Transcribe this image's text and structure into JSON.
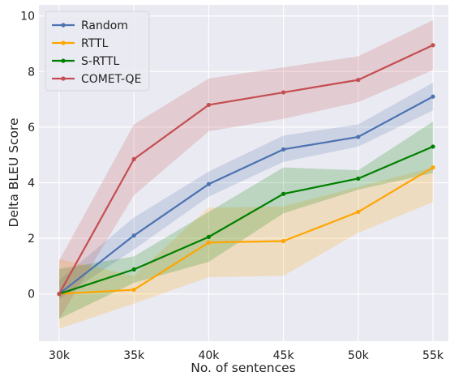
{
  "chart_data": {
    "type": "line",
    "xlabel": "No. of sentences",
    "ylabel": "Delta BLEU Score",
    "categories": [
      "30k",
      "35k",
      "40k",
      "45k",
      "50k",
      "55k"
    ],
    "yticks": [
      0,
      2,
      4,
      6,
      8,
      10
    ],
    "ylim": [
      -1.7,
      10.4
    ],
    "grid": true,
    "legend_position": "top-left",
    "series": [
      {
        "name": "Random",
        "color": "#4c72b0",
        "values": [
          0.0,
          2.1,
          3.95,
          5.2,
          5.65,
          7.1
        ],
        "band_lower": [
          -0.2,
          1.6,
          3.5,
          4.75,
          5.3,
          6.6
        ],
        "band_upper": [
          0.5,
          2.75,
          4.4,
          5.7,
          6.1,
          7.6
        ]
      },
      {
        "name": "RTTL",
        "color": "#ffa500",
        "values": [
          0.0,
          0.15,
          1.85,
          1.9,
          2.95,
          4.55
        ],
        "band_lower": [
          -1.25,
          -0.35,
          0.6,
          0.65,
          2.2,
          3.3
        ],
        "band_upper": [
          1.25,
          0.65,
          3.1,
          3.15,
          3.85,
          4.55
        ]
      },
      {
        "name": "S-RTTL",
        "color": "#008000",
        "values": [
          0.0,
          0.88,
          2.05,
          3.6,
          4.15,
          5.3
        ],
        "band_lower": [
          -0.9,
          0.4,
          1.15,
          2.9,
          3.75,
          4.35
        ],
        "band_upper": [
          0.9,
          1.35,
          2.95,
          4.55,
          4.45,
          6.2
        ]
      },
      {
        "name": "COMET-QE",
        "color": "#c44e52",
        "values": [
          0.0,
          4.85,
          6.8,
          7.25,
          7.7,
          8.95
        ],
        "band_lower": [
          -0.9,
          3.55,
          5.85,
          6.3,
          6.9,
          8.05
        ],
        "band_upper": [
          1.2,
          6.1,
          7.75,
          8.15,
          8.55,
          9.85
        ]
      }
    ]
  }
}
